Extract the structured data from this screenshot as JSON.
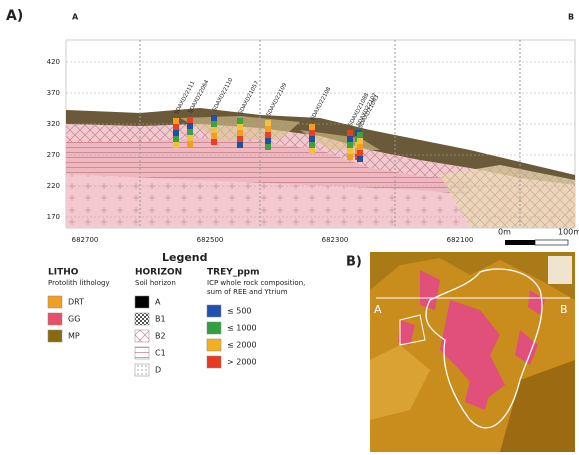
{
  "panel_a": {
    "label": "A)",
    "left_end": "A",
    "right_end": "B",
    "yticks": [
      "420",
      "370",
      "320",
      "270",
      "220",
      "170"
    ],
    "xticks": [
      "682700",
      "682500",
      "682300",
      "682100"
    ],
    "scale_labels": [
      "0m",
      "100m"
    ],
    "drillholes": [
      "SDAXD22111",
      "SDAXD22064",
      "SDAXD22110",
      "SDAXD21057",
      "SDAXD22109",
      "SDAXD22108",
      "SDAXD21088",
      "SDAXD22107",
      "SDAXD21063"
    ]
  },
  "legend": {
    "title": "Legend",
    "litho": {
      "title": "LITHO",
      "subtitle": "Protolith lithology",
      "items": [
        "DRT",
        "GG",
        "MP"
      ]
    },
    "horizon": {
      "title": "HORIZON",
      "subtitle": "Soil horizon",
      "items": [
        "A",
        "B1",
        "B2",
        "C1",
        "D"
      ]
    },
    "trey": {
      "title": "TREY_ppm",
      "subtitle": [
        "ICP whole rock composition,",
        "sum of REE and Ytrium"
      ],
      "items": [
        "≤ 500",
        "≤ 1000",
        "≤ 2000",
        "> 2000"
      ]
    }
  },
  "panel_b": {
    "label": "B)",
    "left_end": "A",
    "right_end": "B"
  }
}
